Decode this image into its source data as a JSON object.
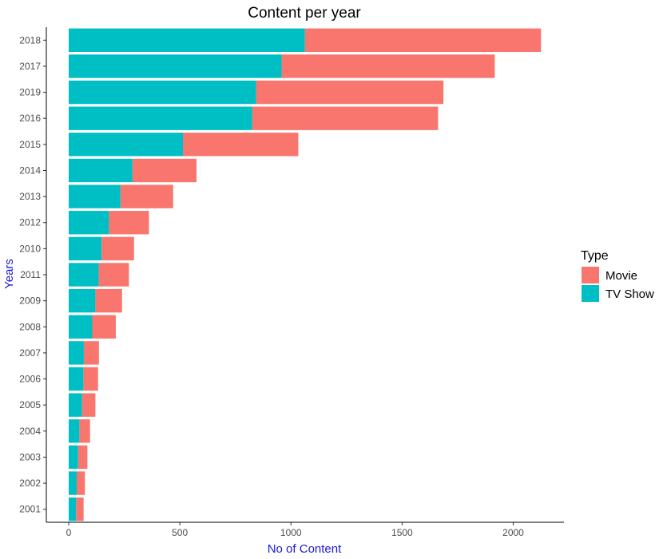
{
  "chart_data": {
    "type": "bar",
    "orientation": "horizontal",
    "stacked": true,
    "title": "Content per year",
    "xlabel": "No of Content",
    "ylabel": "Years",
    "xlim": [
      0,
      2200
    ],
    "x_ticks": [
      0,
      500,
      1000,
      1500,
      2000
    ],
    "grid": false,
    "legend": {
      "title": "Type",
      "position": "right"
    },
    "categories": [
      "2018",
      "2017",
      "2019",
      "2016",
      "2015",
      "2014",
      "2013",
      "2012",
      "2010",
      "2011",
      "2009",
      "2008",
      "2007",
      "2006",
      "2005",
      "2004",
      "2003",
      "2002",
      "2001"
    ],
    "series": [
      {
        "name": "TV Show",
        "color": "#00BFC4",
        "values": [
          1063,
          958,
          843,
          826,
          514,
          287,
          233,
          181,
          148,
          135,
          120,
          106,
          68,
          66,
          60,
          48,
          42,
          36,
          33
        ]
      },
      {
        "name": "Movie",
        "color": "#F8766D",
        "values": [
          1062,
          959,
          843,
          836,
          519,
          288,
          237,
          180,
          146,
          136,
          120,
          106,
          68,
          66,
          60,
          48,
          42,
          37,
          34
        ]
      }
    ]
  }
}
